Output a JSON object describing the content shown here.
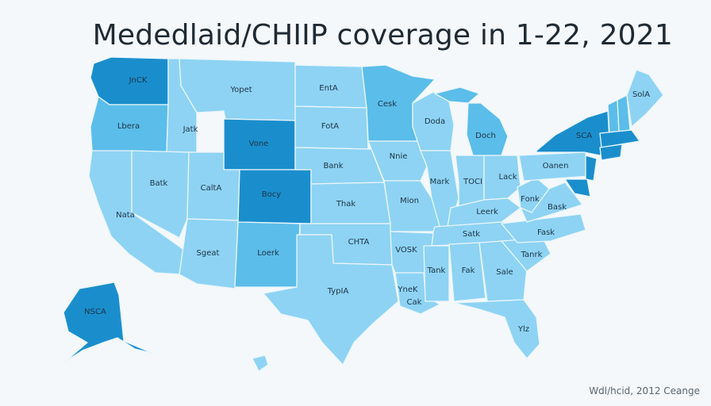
{
  "title": "Mededlaid/CHIIP coverage in 1-22, 2021",
  "source": "Wdl/hcid, 2012 Ceange",
  "colors": {
    "background": "#f4f8fb",
    "light": "#8ed3f3",
    "mid": "#5bbde9",
    "mid_dark": "#3aa6dc",
    "dark": "#1a8ecc",
    "border": "#eaf6fc"
  },
  "map_style": "choropleth-by-state",
  "labels": {
    "wa": "JnCK",
    "or": "Lbera",
    "mt": "Yopet",
    "id": "Jatk",
    "nd": "EntA",
    "mn": "Cesk",
    "wi": "Doda",
    "mi": "Doch",
    "me": "SolA",
    "ny": "SCA",
    "wy": "Vone",
    "sd": "FotA",
    "nv": "Batk",
    "ut": "CaltA",
    "co": "Bocy",
    "ne": "Bank",
    "ia": "Nnie",
    "il": "Mark",
    "in": "TOCI",
    "oh": "Lack",
    "pa": "Oanen",
    "ca": "Nata",
    "ks": "Thak",
    "mo": "Mion",
    "wv": "Fonk",
    "va": "Bask",
    "ky": "Leerk",
    "az": "Sgeat",
    "nm": "Loerk",
    "ok": "CHTA",
    "tn": "Satk",
    "nc": "Fask",
    "ar": "VOSK",
    "sc": "Tanrk",
    "ms": "Tank",
    "al": "Fak",
    "ga": "Sale",
    "tx": "TypIA",
    "la": "YneK",
    "la2": "Cak",
    "fl": "Ylz",
    "ak": "NSCA"
  }
}
